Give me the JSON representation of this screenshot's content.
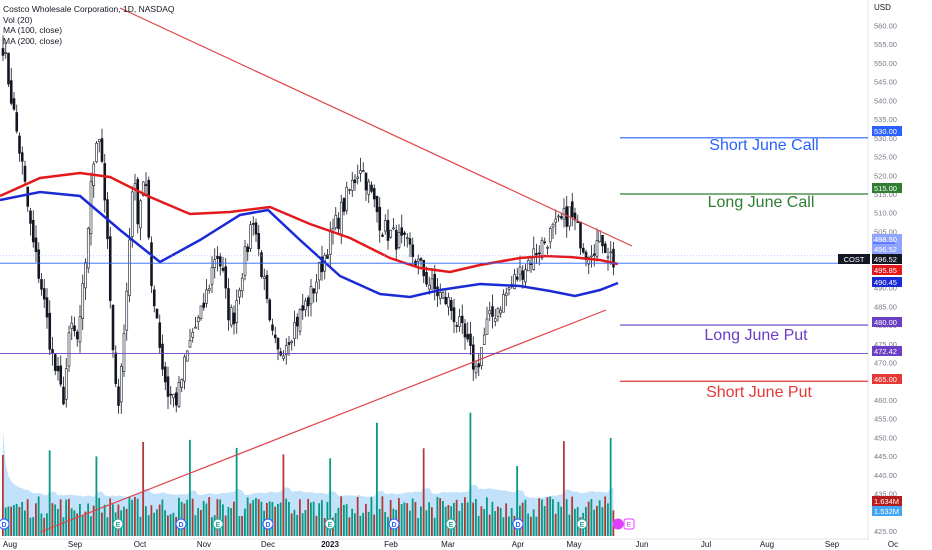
{
  "chart_data": {
    "type": "candlestick",
    "title": "Costco Wholesale Corporation, 1D, NASDAQ",
    "symbol": "COST",
    "currency_label": "USD",
    "indicators": [
      "Vol (20)",
      "MA (100, close)",
      "MA (200, close)"
    ],
    "ylim": [
      425,
      562
    ],
    "y_ticks": [
      425,
      430,
      435,
      440,
      445,
      450,
      455,
      460,
      465,
      470,
      475,
      480,
      485,
      490,
      495,
      500,
      505,
      510,
      515,
      520,
      525,
      530,
      535,
      540,
      545,
      550,
      555,
      560
    ],
    "x_tick_labels": [
      "Aug",
      "Sep",
      "Oct",
      "Nov",
      "Dec",
      "2023",
      "Feb",
      "Mar",
      "Apr",
      "May",
      "Jun",
      "Jul",
      "Aug",
      "Sep",
      "Oc"
    ],
    "colors": {
      "up": "#089981",
      "down": "#131722",
      "ma100": "#1a2bd6",
      "ma200": "#e3191c",
      "trend": "#e0434a",
      "volume_up": "#089981",
      "volume_down": "#b23a35",
      "volume_ma": "#90caf9"
    },
    "price_labels": [
      {
        "text": "530.00",
        "color": "#2962ff"
      },
      {
        "text": "515.00",
        "color": "#2e7d32"
      },
      {
        "text": "498.50",
        "color": "#90a4ff"
      },
      {
        "text": "Post",
        "color": "#5f7bff"
      },
      {
        "text": "496.52",
        "color": "#90a4ff"
      },
      {
        "text": "COST",
        "color": "#131722"
      },
      {
        "text": "496.52",
        "color": "#131722"
      },
      {
        "text": "495.85",
        "color": "#e3191c"
      },
      {
        "text": "490.45",
        "color": "#1a2bd6"
      },
      {
        "text": "480.00",
        "color": "#6a3fc4"
      },
      {
        "text": "472.42",
        "color": "#6a3fc4"
      },
      {
        "text": "465.00",
        "color": "#e53935"
      },
      {
        "text": "1.634M",
        "color": "#b71c1c"
      },
      {
        "text": "1.532M",
        "color": "#42a5f5"
      }
    ],
    "levels": [
      {
        "price": 530,
        "label": "Short June Call",
        "color": "#2962ff"
      },
      {
        "price": 515,
        "label": "Long June Call",
        "color": "#2e7d32"
      },
      {
        "price": 480,
        "label": "Long June Put",
        "color": "#6a3fc4"
      },
      {
        "price": 465,
        "label": "Short June Put",
        "color": "#e53935"
      }
    ],
    "last_price": 496.52,
    "pre_post_price": 498.5,
    "horizontal_lines": [
      496.52,
      472.42
    ],
    "ma100_last": 490.45,
    "ma200_last": 495.85,
    "event_markers": [
      "D",
      "E",
      "D",
      "E",
      "D",
      "E",
      "D",
      "E",
      "D",
      "E"
    ],
    "series": {
      "close_path": [
        {
          "x": 0,
          "y": 555
        },
        {
          "x": 20,
          "y": 522
        },
        {
          "x": 30,
          "y": 503
        },
        {
          "x": 40,
          "y": 490
        },
        {
          "x": 52,
          "y": 470
        },
        {
          "x": 62,
          "y": 460
        },
        {
          "x": 70,
          "y": 480
        },
        {
          "x": 78,
          "y": 475
        },
        {
          "x": 86,
          "y": 500
        },
        {
          "x": 92,
          "y": 520
        },
        {
          "x": 98,
          "y": 534
        },
        {
          "x": 104,
          "y": 520
        },
        {
          "x": 110,
          "y": 490
        },
        {
          "x": 114,
          "y": 470
        },
        {
          "x": 118,
          "y": 457
        },
        {
          "x": 122,
          "y": 470
        },
        {
          "x": 126,
          "y": 480
        },
        {
          "x": 130,
          "y": 500
        },
        {
          "x": 134,
          "y": 520
        },
        {
          "x": 140,
          "y": 508
        },
        {
          "x": 144,
          "y": 520
        },
        {
          "x": 148,
          "y": 516
        },
        {
          "x": 152,
          "y": 492
        },
        {
          "x": 158,
          "y": 485
        },
        {
          "x": 164,
          "y": 470
        },
        {
          "x": 170,
          "y": 462
        },
        {
          "x": 180,
          "y": 460
        },
        {
          "x": 188,
          "y": 470
        },
        {
          "x": 196,
          "y": 478
        },
        {
          "x": 204,
          "y": 482
        },
        {
          "x": 212,
          "y": 490
        },
        {
          "x": 220,
          "y": 500
        },
        {
          "x": 226,
          "y": 495
        },
        {
          "x": 232,
          "y": 484
        },
        {
          "x": 238,
          "y": 482
        },
        {
          "x": 246,
          "y": 494
        },
        {
          "x": 252,
          "y": 500
        },
        {
          "x": 258,
          "y": 510
        },
        {
          "x": 264,
          "y": 500
        },
        {
          "x": 270,
          "y": 490
        },
        {
          "x": 276,
          "y": 478
        },
        {
          "x": 284,
          "y": 472
        }
      ],
      "volume_bars": "synthetic-daily",
      "volume_ma": "smoothed"
    }
  }
}
